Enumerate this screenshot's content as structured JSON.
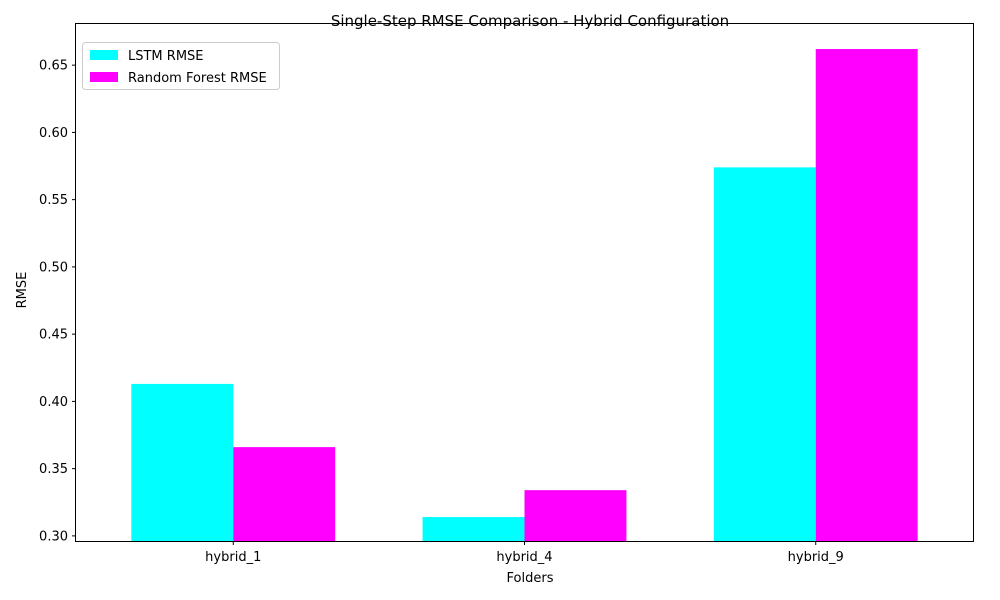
{
  "chart_data": {
    "type": "bar",
    "title": "Single-Step RMSE Comparison - Hybrid Configuration",
    "xlabel": "Folders",
    "ylabel": "RMSE",
    "categories": [
      "hybrid_1",
      "hybrid_4",
      "hybrid_9"
    ],
    "series": [
      {
        "name": "LSTM RMSE",
        "color": "#00ffff",
        "values": [
          0.413,
          0.314,
          0.574
        ]
      },
      {
        "name": "Random Forest RMSE",
        "color": "#ff00ff",
        "values": [
          0.366,
          0.334,
          0.662
        ]
      }
    ],
    "ylim": [
      0.2962,
      0.6806
    ],
    "yticks": [
      0.3,
      0.35,
      0.4,
      0.45,
      0.5,
      0.55,
      0.6,
      0.65
    ],
    "ytick_labels": [
      "0.30",
      "0.35",
      "0.40",
      "0.45",
      "0.50",
      "0.55",
      "0.60",
      "0.65"
    ],
    "grid": false,
    "legend_position": "top-left"
  }
}
